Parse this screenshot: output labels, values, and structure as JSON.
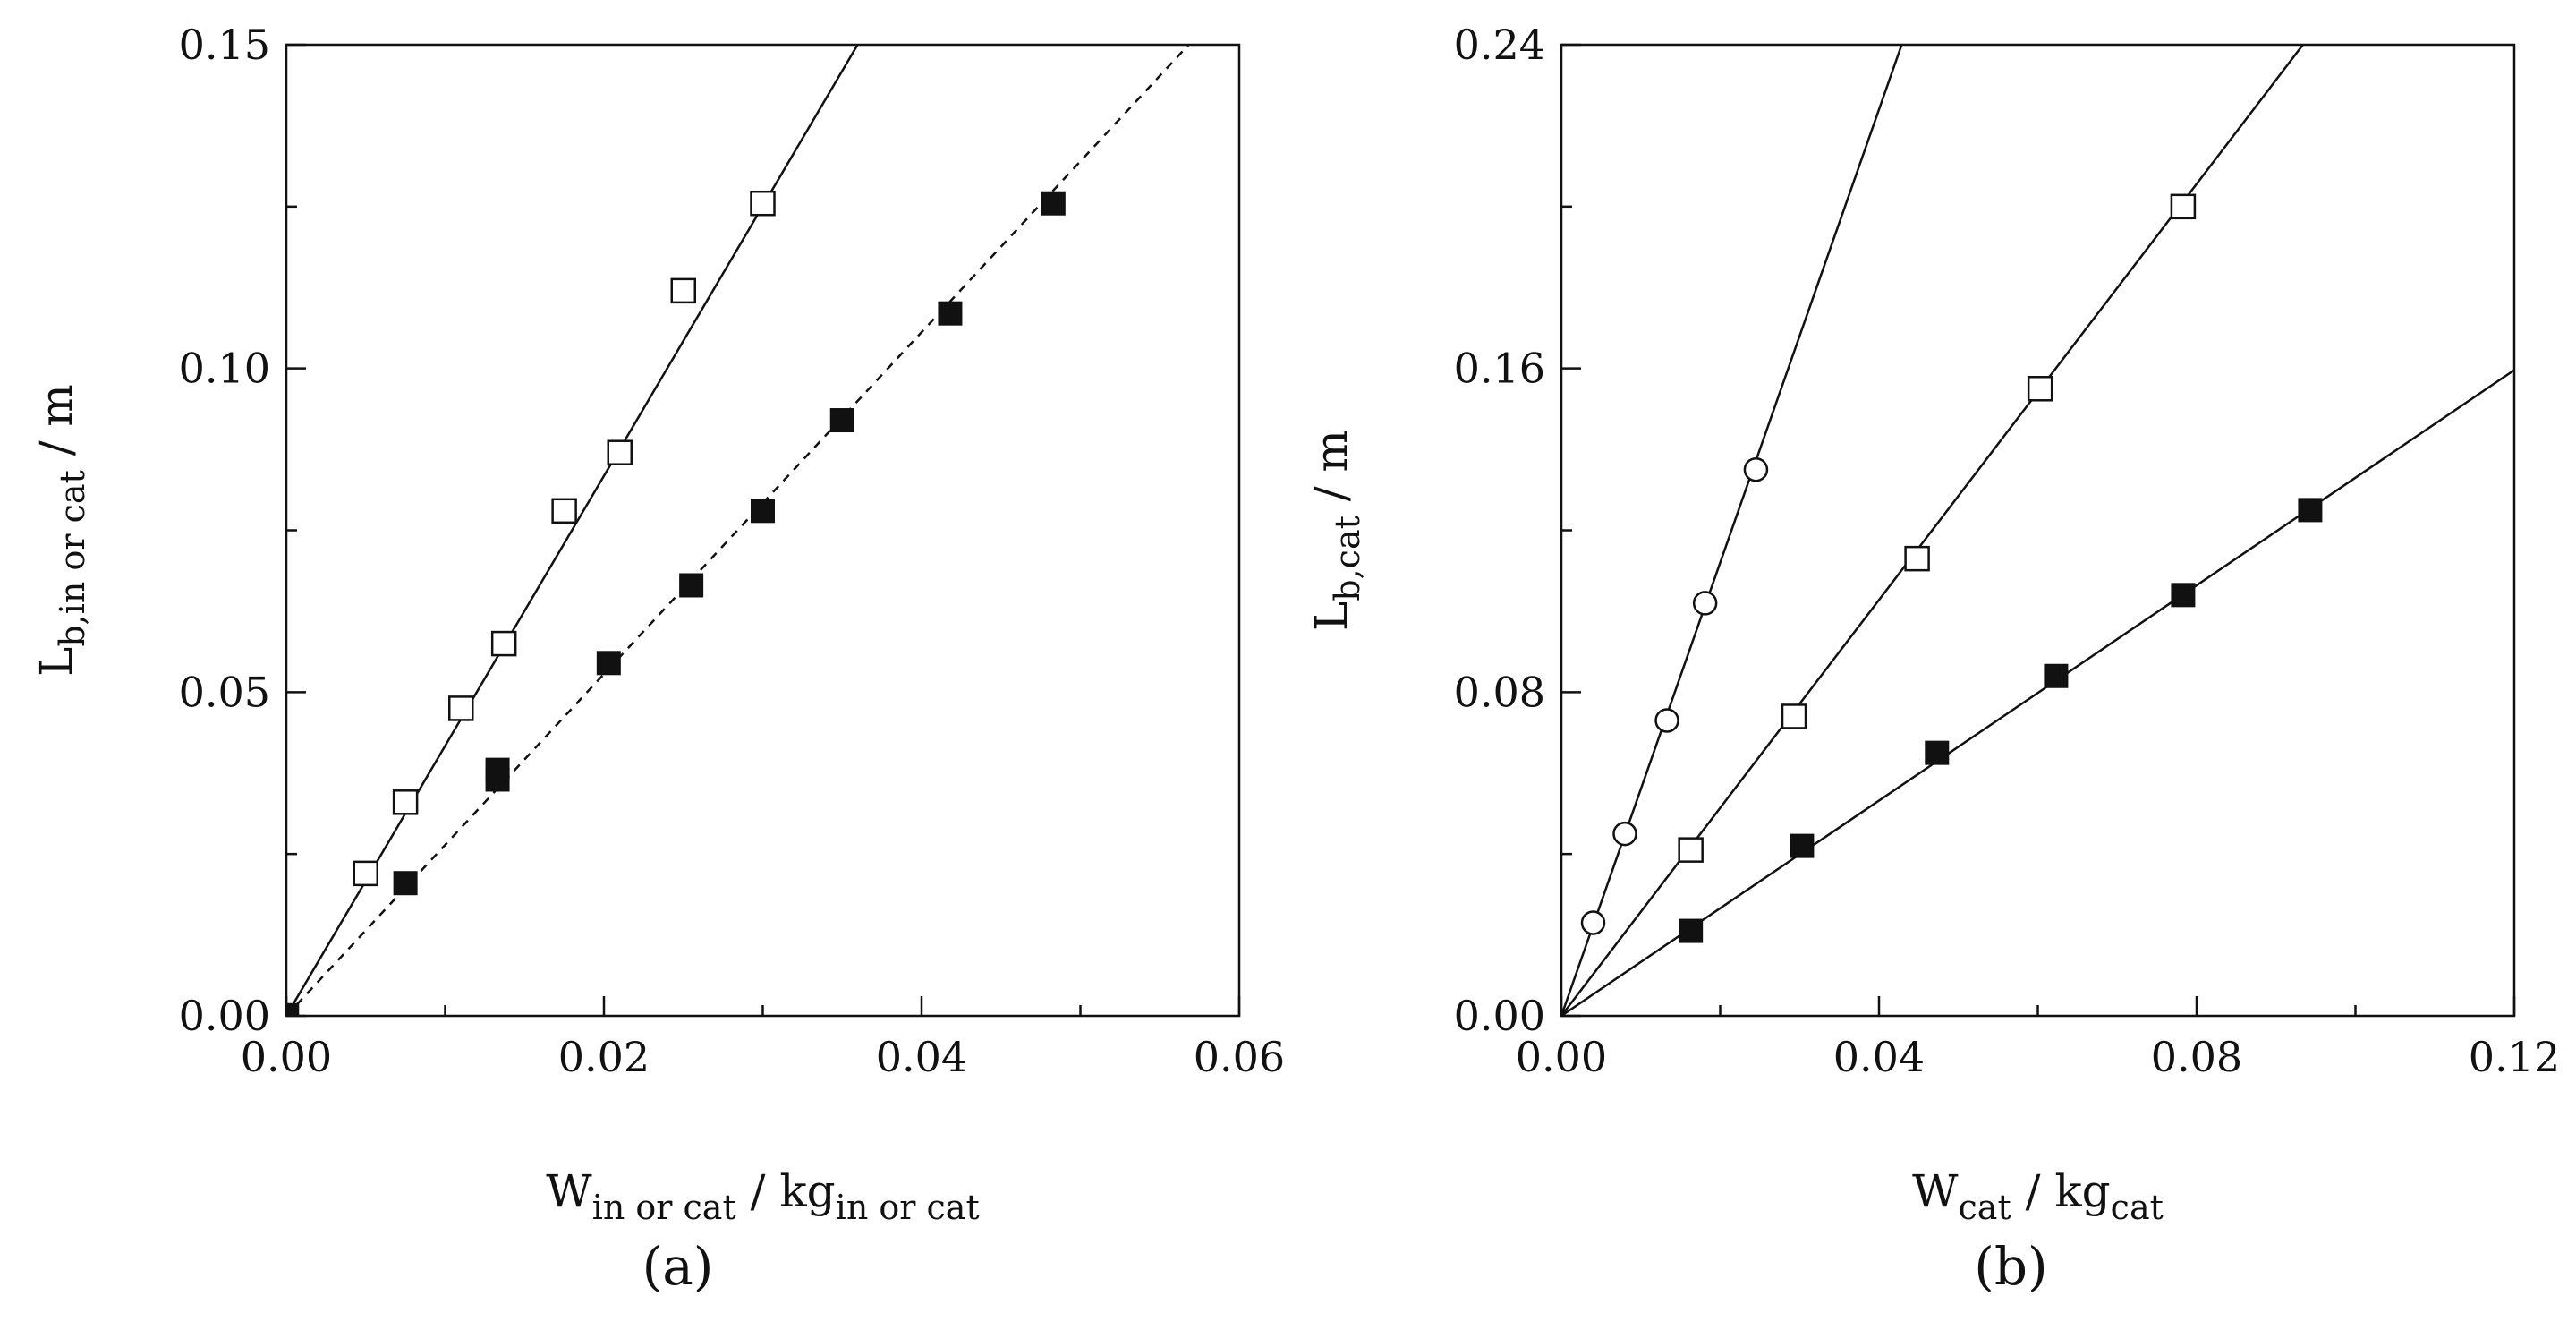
{
  "chart_data": [
    {
      "type": "scatter",
      "panel_label": "(a)",
      "xlabel": {
        "main": "W",
        "sub": "in or cat",
        "sep": " / kg",
        "sub2": "in or cat"
      },
      "ylabel": {
        "main": "L",
        "sub": "b,in or cat",
        "unit": " / m"
      },
      "xlim": [
        0,
        0.06
      ],
      "ylim": [
        0,
        0.15
      ],
      "x_ticks": [
        0.0,
        0.02,
        0.04,
        0.06
      ],
      "x_tick_labels": [
        "0.00",
        "0.02",
        "0.04",
        "0.06"
      ],
      "x_minor_ticks": [
        0.01,
        0.03,
        0.05
      ],
      "y_ticks": [
        0.0,
        0.05,
        0.1,
        0.15
      ],
      "y_tick_labels": [
        "0.00",
        "0.05",
        "0.10",
        "0.15"
      ],
      "y_minor_ticks": [
        0.025,
        0.075,
        0.125
      ],
      "series": [
        {
          "name": "open squares",
          "marker": "open-square",
          "points": [
            [
              0.0,
              0.0
            ],
            [
              0.005,
              0.022
            ],
            [
              0.0075,
              0.033
            ],
            [
              0.011,
              0.0475
            ],
            [
              0.0137,
              0.0575
            ],
            [
              0.0175,
              0.078
            ],
            [
              0.021,
              0.087
            ],
            [
              0.025,
              0.112
            ],
            [
              0.03,
              0.1255
            ]
          ],
          "fit_line": {
            "style": "solid",
            "slope": 4.17
          }
        },
        {
          "name": "filled squares",
          "marker": "filled-square",
          "points": [
            [
              0.0,
              0.0
            ],
            [
              0.0075,
              0.0205
            ],
            [
              0.0133,
              0.0365
            ],
            [
              0.0133,
              0.038
            ],
            [
              0.0203,
              0.0545
            ],
            [
              0.0255,
              0.0665
            ],
            [
              0.03,
              0.078
            ],
            [
              0.035,
              0.092
            ],
            [
              0.0418,
              0.1085
            ],
            [
              0.0483,
              0.1255
            ]
          ],
          "fit_line": {
            "style": "dashed",
            "slope": 2.64
          }
        }
      ]
    },
    {
      "type": "scatter",
      "panel_label": "(b)",
      "xlabel": {
        "main": "W",
        "sub": "cat",
        "sep": " / kg",
        "sub2": "cat"
      },
      "ylabel": {
        "main": "L",
        "sub": "b,cat",
        "unit": " / m"
      },
      "xlim": [
        0,
        0.12
      ],
      "ylim": [
        0,
        0.24
      ],
      "x_ticks": [
        0.0,
        0.04,
        0.08,
        0.12
      ],
      "x_tick_labels": [
        "0.00",
        "0.04",
        "0.08",
        "0.12"
      ],
      "x_minor_ticks": [
        0.02,
        0.06,
        0.1
      ],
      "y_ticks": [
        0.0,
        0.08,
        0.16,
        0.24
      ],
      "y_tick_labels": [
        "0.00",
        "0.08",
        "0.16",
        "0.24"
      ],
      "y_minor_ticks": [
        0.04,
        0.12,
        0.2
      ],
      "series": [
        {
          "name": "open circles",
          "marker": "open-circle",
          "points": [
            [
              0.004,
              0.023
            ],
            [
              0.008,
              0.045
            ],
            [
              0.0133,
              0.073
            ],
            [
              0.0181,
              0.102
            ],
            [
              0.0245,
              0.135
            ]
          ],
          "fit_line": {
            "style": "solid",
            "slope": 5.6
          }
        },
        {
          "name": "open squares",
          "marker": "open-square",
          "points": [
            [
              0.0163,
              0.041
            ],
            [
              0.0293,
              0.074
            ],
            [
              0.0448,
              0.113
            ],
            [
              0.0603,
              0.155
            ],
            [
              0.0783,
              0.2
            ]
          ],
          "fit_line": {
            "style": "solid",
            "slope": 2.57
          }
        },
        {
          "name": "filled squares",
          "marker": "filled-square",
          "points": [
            [
              0.0163,
              0.021
            ],
            [
              0.0303,
              0.042
            ],
            [
              0.0473,
              0.065
            ],
            [
              0.0623,
              0.084
            ],
            [
              0.0783,
              0.104
            ],
            [
              0.0943,
              0.125
            ]
          ],
          "fit_line": {
            "style": "solid",
            "slope": 1.33
          }
        }
      ]
    }
  ]
}
